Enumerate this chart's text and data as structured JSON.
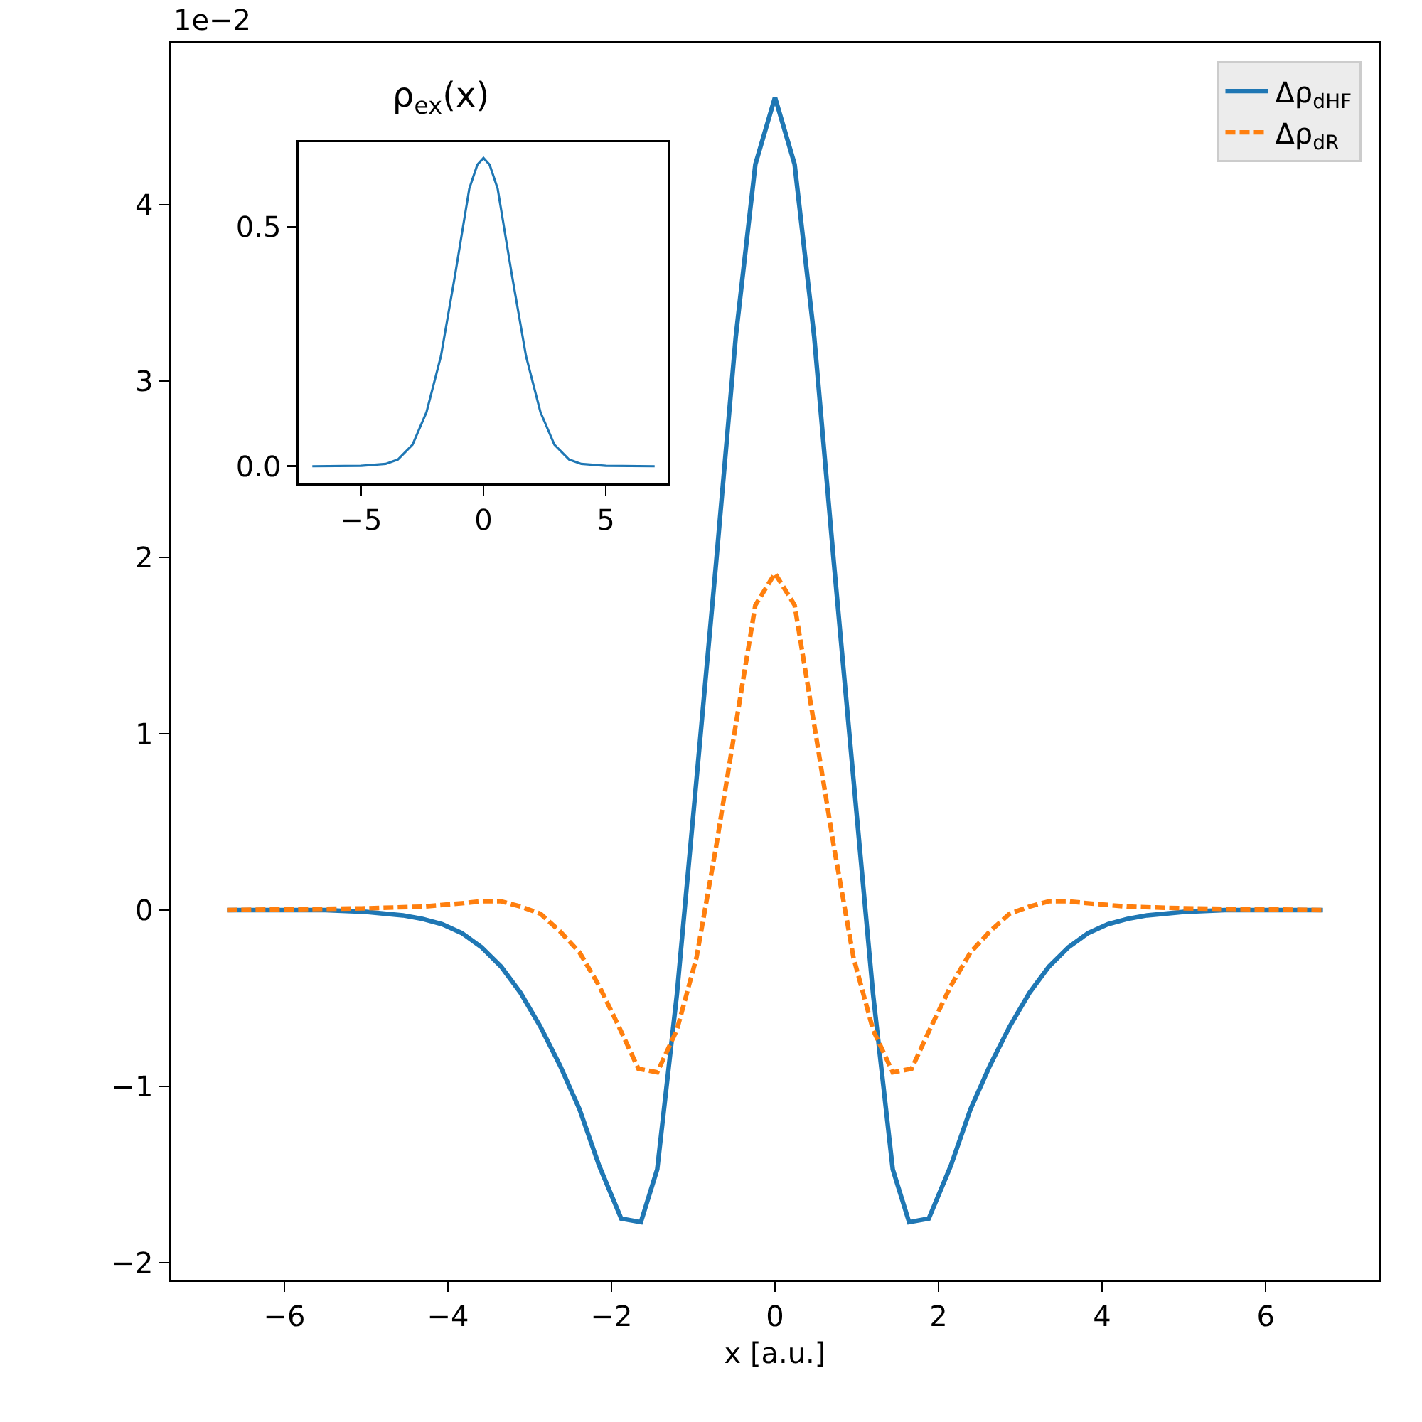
{
  "chart_data": [
    {
      "type": "line",
      "xlabel": "x [a.u.]",
      "annotations": [
        "1e−2"
      ],
      "xlim": [
        -7.39,
        7.39
      ],
      "ylim": [
        -2.097,
        4.92
      ],
      "xticks": [
        -6,
        -4,
        -2,
        0,
        2,
        4,
        6
      ],
      "yticks": [
        -2,
        -1,
        0,
        1,
        2,
        3,
        4
      ],
      "grid": false,
      "legend": "top right",
      "marker": "none",
      "series": [
        {
          "name": "Δρ$_{dHF}$",
          "color": "#1f77b4",
          "line_style": "solid",
          "x": [
            -6.7,
            -5.5,
            -5.0,
            -4.55,
            -4.31,
            -4.07,
            -3.83,
            -3.59,
            -3.35,
            -3.11,
            -2.87,
            -2.63,
            -2.39,
            -2.15,
            -1.88,
            -1.64,
            -1.44,
            -1.2,
            -0.96,
            -0.72,
            -0.48,
            -0.24,
            0,
            0.24,
            0.48,
            0.72,
            0.96,
            1.2,
            1.44,
            1.64,
            1.88,
            2.15,
            2.39,
            2.63,
            2.87,
            3.11,
            3.35,
            3.59,
            3.83,
            4.07,
            4.31,
            4.55,
            5.0,
            5.5,
            6.7
          ],
          "values": [
            0,
            0,
            -0.01,
            -0.03,
            -0.05,
            -0.08,
            -0.13,
            -0.21,
            -0.32,
            -0.47,
            -0.66,
            -0.88,
            -1.13,
            -1.45,
            -1.75,
            -1.77,
            -1.47,
            -0.48,
            0.74,
            1.97,
            3.25,
            4.23,
            4.61,
            4.23,
            3.25,
            1.97,
            0.74,
            -0.48,
            -1.47,
            -1.77,
            -1.75,
            -1.45,
            -1.13,
            -0.88,
            -0.66,
            -0.47,
            -0.32,
            -0.21,
            -0.13,
            -0.08,
            -0.05,
            -0.03,
            -0.01,
            0,
            0
          ]
        },
        {
          "name": "Δρ$_{dR}$",
          "color": "#ff7f0e",
          "line_style": "dashed",
          "x": [
            -6.7,
            -5.0,
            -4.3,
            -3.8,
            -3.59,
            -3.35,
            -3.11,
            -2.87,
            -2.63,
            -2.39,
            -2.15,
            -1.91,
            -1.67,
            -1.44,
            -1.2,
            -0.96,
            -0.72,
            -0.48,
            -0.24,
            0,
            0.24,
            0.48,
            0.72,
            0.96,
            1.2,
            1.44,
            1.67,
            1.91,
            2.15,
            2.39,
            2.63,
            2.87,
            3.11,
            3.35,
            3.59,
            3.8,
            4.3,
            5.0,
            6.7
          ],
          "values": [
            0,
            0.01,
            0.02,
            0.04,
            0.05,
            0.05,
            0.02,
            -0.02,
            -0.12,
            -0.24,
            -0.43,
            -0.66,
            -0.9,
            -0.92,
            -0.68,
            -0.27,
            0.36,
            1.05,
            1.73,
            1.91,
            1.73,
            1.05,
            0.36,
            -0.27,
            -0.68,
            -0.92,
            -0.9,
            -0.66,
            -0.43,
            -0.24,
            -0.12,
            -0.02,
            0.02,
            0.05,
            0.05,
            0.04,
            0.02,
            0.01,
            0
          ]
        }
      ]
    },
    {
      "type": "line",
      "title": "ρ$_{ex}$(x)",
      "xlim": [
        -7.56,
        7.56
      ],
      "ylim": [
        -0.036,
        0.677
      ],
      "xticks": [
        -5,
        0,
        5
      ],
      "yticks": [
        {
          "value": 0,
          "label": "0.0"
        },
        {
          "value": 0.5,
          "label": "0.5"
        }
      ],
      "grid": false,
      "legend": false,
      "marker": "none",
      "series": [
        {
          "color": "#1f77b4",
          "line_style": "solid",
          "x": [
            -7,
            -5,
            -4,
            -3.5,
            -2.9,
            -2.33,
            -1.74,
            -1.16,
            -0.58,
            -0.25,
            0,
            0.25,
            0.58,
            1.16,
            1.74,
            2.33,
            2.9,
            3.5,
            4,
            5,
            7
          ],
          "values": [
            0,
            0.001,
            0.005,
            0.014,
            0.045,
            0.113,
            0.23,
            0.4,
            0.58,
            0.63,
            0.644,
            0.63,
            0.58,
            0.4,
            0.23,
            0.113,
            0.045,
            0.014,
            0.005,
            0.001,
            0
          ]
        }
      ]
    }
  ]
}
